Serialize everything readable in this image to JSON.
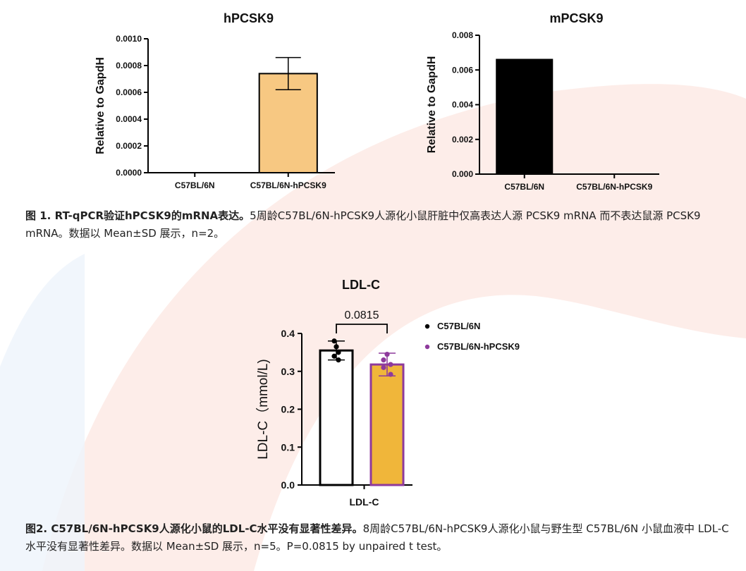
{
  "colors": {
    "hpcsk9_bar": "#f7c882",
    "mpcsk9_bar": "#000000",
    "ldl_wt_bar": "#ffffff",
    "ldl_h_bar": "#f0b63a",
    "ldl_h_point": "#8e3a9c",
    "ldl_wt_point": "#000000",
    "background_arc": "#fbe3dc"
  },
  "chart_data": [
    {
      "type": "bar",
      "title": "hPCSK9",
      "xlabel": "",
      "ylabel": "Relative to GapdH",
      "ylim": [
        0,
        0.001
      ],
      "yticks": [
        "0.0000",
        "0.0002",
        "0.0004",
        "0.0006",
        "0.0008",
        "0.0010"
      ],
      "categories": [
        "C57BL/6N",
        "C57BL/6N-hPCSK9"
      ],
      "values": [
        0,
        0.00074
      ],
      "error": [
        0,
        0.00012
      ]
    },
    {
      "type": "bar",
      "title": "mPCSK9",
      "xlabel": "",
      "ylabel": "Relative to GapdH",
      "ylim": [
        0,
        0.008
      ],
      "yticks": [
        "0.000",
        "0.002",
        "0.004",
        "0.006",
        "0.008"
      ],
      "categories": [
        "C57BL/6N",
        "C57BL/6N-hPCSK9"
      ],
      "values": [
        0.0066,
        0
      ],
      "error": [
        0,
        0
      ]
    },
    {
      "type": "bar",
      "title": "LDL-C",
      "xlabel": "LDL-C",
      "ylabel": "LDL-C（mmol/L)",
      "ylim": [
        0,
        0.4
      ],
      "yticks": [
        "0.0",
        "0.1",
        "0.2",
        "0.3",
        "0.4"
      ],
      "annotation": "0.0815",
      "legend_position": "right",
      "series": [
        {
          "name": "C57BL/6N",
          "value": 0.355,
          "sd": 0.025,
          "points": [
            0.38,
            0.365,
            0.35,
            0.34,
            0.33
          ]
        },
        {
          "name": "C57BL/6N-hPCSK9",
          "value": 0.318,
          "sd": 0.03,
          "points": [
            0.345,
            0.33,
            0.318,
            0.31,
            0.292
          ]
        }
      ]
    }
  ],
  "captions": {
    "fig1_bold": "图 1. RT-qPCR验证hPCSK9的mRNA表达。",
    "fig1_text": "5周龄C57BL/6N-hPCSK9人源化小鼠肝脏中仅高表达人源 PCSK9 mRNA 而不表达鼠源 PCSK9 mRNA。数据以 Mean±SD 展示，n=2。",
    "fig2_bold": "图2. C57BL/6N-hPCSK9人源化小鼠的LDL-C水平没有显著性差异。",
    "fig2_text": "8周龄C57BL/6N-hPCSK9人源化小鼠与野生型 C57BL/6N 小鼠血液中 LDL-C 水平没有显著性差异。数据以 Mean±SD 展示，n=5。P=0.0815 by unpaired t test。"
  }
}
